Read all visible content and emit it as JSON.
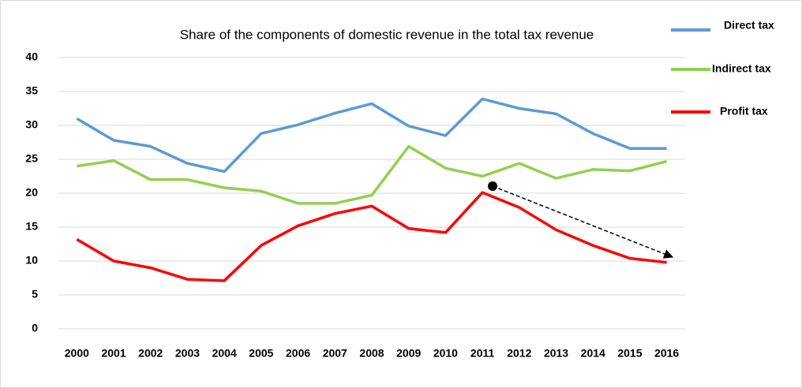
{
  "chart_data": {
    "type": "line",
    "title": "Share of the components of domestic revenue in the total tax revenue",
    "categories": [
      "2000",
      "2001",
      "2002",
      "2003",
      "2004",
      "2005",
      "2006",
      "2007",
      "2008",
      "2009",
      "2010",
      "2011",
      "2012",
      "2013",
      "2014",
      "2015",
      "2016"
    ],
    "series": [
      {
        "name": "Direct tax",
        "color": "#5b9bd5",
        "values": [
          31,
          27.8,
          26.9,
          24.4,
          23.2,
          28.8,
          30.1,
          31.8,
          33.2,
          29.9,
          28.5,
          33.9,
          32.5,
          31.7,
          28.8,
          26.6,
          26.6
        ]
      },
      {
        "name": "Indirect tax",
        "color": "#92d050",
        "values": [
          24,
          24.8,
          22,
          22,
          20.8,
          20.3,
          18.5,
          18.5,
          19.7,
          26.9,
          23.7,
          22.5,
          24.4,
          22.2,
          23.5,
          23.3,
          24.7
        ]
      },
      {
        "name": "Profit tax",
        "color": "#ff0000",
        "values": [
          13.2,
          10,
          9,
          7.3,
          7.1,
          12.3,
          15.2,
          17,
          18.1,
          14.8,
          14.2,
          20.1,
          17.9,
          14.6,
          12.3,
          10.4,
          9.8
        ]
      }
    ],
    "ylim": [
      0,
      40
    ],
    "yticks": [
      0,
      5,
      10,
      15,
      20,
      25,
      30,
      35,
      40
    ],
    "grid": true,
    "legend": "right"
  }
}
